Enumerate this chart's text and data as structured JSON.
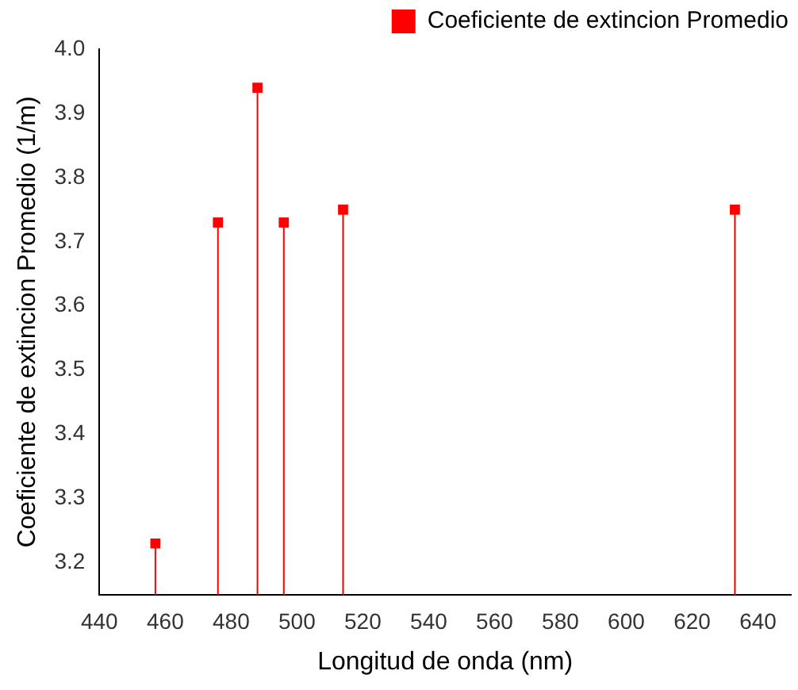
{
  "chart_data": {
    "type": "lollipop",
    "xlabel": "Longitud de onda (nm)",
    "ylabel": "Coeficiente de extincion Promedio (1/m)",
    "x": [
      457,
      476,
      488,
      496,
      514,
      633
    ],
    "series": [
      {
        "name": "Coeficiente de extincion Promedio",
        "color": "#ff0000",
        "values": [
          3.23,
          3.73,
          3.94,
          3.73,
          3.75,
          3.75
        ]
      }
    ],
    "xlim": [
      440,
      650
    ],
    "xticks": [
      440,
      460,
      480,
      500,
      520,
      540,
      560,
      580,
      600,
      620,
      640
    ],
    "ylim": [
      3.15,
      4.0
    ],
    "yticks": [
      {
        "value": 3.2,
        "label": "3.2"
      },
      {
        "value": 3.3,
        "label": "3.3"
      },
      {
        "value": 3.4,
        "label": "3.4"
      },
      {
        "value": 3.5,
        "label": "3.5"
      },
      {
        "value": 3.6,
        "label": "3.6"
      },
      {
        "value": 3.7,
        "label": "3.7"
      },
      {
        "value": 3.8,
        "label": "3.8"
      },
      {
        "value": 3.9,
        "label": "3.9"
      },
      {
        "value": 4,
        "label": "4.0"
      }
    ],
    "legend": "top right",
    "marker": "square",
    "grid": false
  }
}
